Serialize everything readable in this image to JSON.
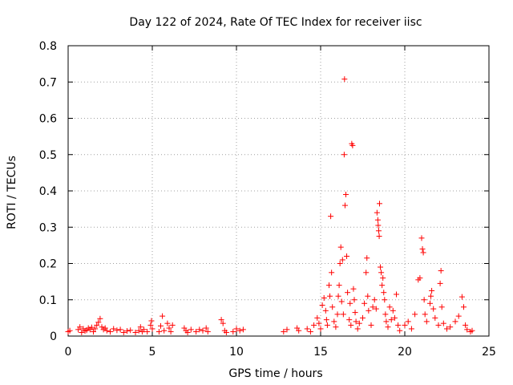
{
  "chart_data": {
    "type": "scatter",
    "title": "Day 122 of 2024, Rate Of TEC Index for receiver iisc",
    "xlabel": "GPS time / hours",
    "ylabel": "ROTI / TECUs",
    "xlim": [
      0,
      25
    ],
    "ylim": [
      0,
      0.8
    ],
    "grid": true,
    "x_ticks": [
      0,
      5,
      10,
      15,
      20,
      25
    ],
    "y_ticks": [
      0,
      0.1,
      0.2,
      0.3,
      0.4,
      0.5,
      0.6,
      0.7,
      0.8
    ],
    "x_tick_labels": [
      "0",
      "5",
      "10",
      "15",
      "20",
      "25"
    ],
    "y_tick_labels": [
      "0",
      "0.1",
      "0.2",
      "0.3",
      "0.4",
      "0.5",
      "0.6",
      "0.7",
      "0.8"
    ],
    "marker": "+",
    "marker_color": "#ff0000",
    "series": [
      {
        "name": "ROTI",
        "points": [
          [
            0.0,
            0.012
          ],
          [
            0.1,
            0.015
          ],
          [
            0.6,
            0.018
          ],
          [
            0.7,
            0.025
          ],
          [
            0.8,
            0.01
          ],
          [
            0.9,
            0.02
          ],
          [
            1.0,
            0.014
          ],
          [
            1.1,
            0.016
          ],
          [
            1.2,
            0.022
          ],
          [
            1.3,
            0.018
          ],
          [
            1.4,
            0.024
          ],
          [
            1.5,
            0.012
          ],
          [
            1.6,
            0.02
          ],
          [
            1.7,
            0.03
          ],
          [
            1.8,
            0.038
          ],
          [
            1.9,
            0.048
          ],
          [
            2.0,
            0.025
          ],
          [
            2.1,
            0.018
          ],
          [
            2.2,
            0.022
          ],
          [
            2.3,
            0.015
          ],
          [
            2.5,
            0.012
          ],
          [
            2.7,
            0.02
          ],
          [
            2.9,
            0.016
          ],
          [
            3.1,
            0.018
          ],
          [
            3.3,
            0.01
          ],
          [
            3.5,
            0.014
          ],
          [
            3.7,
            0.016
          ],
          [
            4.0,
            0.01
          ],
          [
            4.2,
            0.015
          ],
          [
            4.3,
            0.025
          ],
          [
            4.4,
            0.012
          ],
          [
            4.5,
            0.018
          ],
          [
            4.7,
            0.012
          ],
          [
            4.9,
            0.03
          ],
          [
            4.95,
            0.042
          ],
          [
            5.0,
            0.02
          ],
          [
            5.4,
            0.012
          ],
          [
            5.5,
            0.028
          ],
          [
            5.6,
            0.055
          ],
          [
            5.7,
            0.015
          ],
          [
            5.9,
            0.035
          ],
          [
            6.0,
            0.022
          ],
          [
            6.1,
            0.012
          ],
          [
            6.2,
            0.03
          ],
          [
            6.9,
            0.022
          ],
          [
            7.0,
            0.015
          ],
          [
            7.1,
            0.01
          ],
          [
            7.3,
            0.018
          ],
          [
            7.6,
            0.012
          ],
          [
            7.8,
            0.018
          ],
          [
            8.0,
            0.015
          ],
          [
            8.2,
            0.022
          ],
          [
            8.3,
            0.012
          ],
          [
            9.1,
            0.045
          ],
          [
            9.2,
            0.035
          ],
          [
            9.3,
            0.015
          ],
          [
            9.4,
            0.01
          ],
          [
            9.8,
            0.012
          ],
          [
            10.0,
            0.02
          ],
          [
            10.2,
            0.015
          ],
          [
            10.4,
            0.018
          ],
          [
            12.8,
            0.012
          ],
          [
            13.0,
            0.018
          ],
          [
            13.6,
            0.022
          ],
          [
            13.7,
            0.015
          ],
          [
            14.2,
            0.02
          ],
          [
            14.4,
            0.012
          ],
          [
            14.6,
            0.03
          ],
          [
            14.8,
            0.05
          ],
          [
            14.9,
            0.035
          ],
          [
            15.0,
            0.02
          ],
          [
            15.1,
            0.085
          ],
          [
            15.2,
            0.105
          ],
          [
            15.3,
            0.07
          ],
          [
            15.35,
            0.045
          ],
          [
            15.4,
            0.03
          ],
          [
            15.5,
            0.14
          ],
          [
            15.55,
            0.11
          ],
          [
            15.6,
            0.33
          ],
          [
            15.65,
            0.175
          ],
          [
            15.7,
            0.08
          ],
          [
            15.8,
            0.04
          ],
          [
            15.9,
            0.025
          ],
          [
            16.0,
            0.06
          ],
          [
            16.05,
            0.11
          ],
          [
            16.1,
            0.14
          ],
          [
            16.15,
            0.2
          ],
          [
            16.2,
            0.245
          ],
          [
            16.25,
            0.095
          ],
          [
            16.3,
            0.21
          ],
          [
            16.35,
            0.06
          ],
          [
            16.4,
            0.5
          ],
          [
            16.42,
            0.708
          ],
          [
            16.45,
            0.36
          ],
          [
            16.5,
            0.39
          ],
          [
            16.55,
            0.22
          ],
          [
            16.6,
            0.12
          ],
          [
            16.7,
            0.045
          ],
          [
            16.75,
            0.09
          ],
          [
            16.8,
            0.03
          ],
          [
            16.85,
            0.53
          ],
          [
            16.9,
            0.525
          ],
          [
            16.95,
            0.13
          ],
          [
            17.0,
            0.1
          ],
          [
            17.05,
            0.065
          ],
          [
            17.1,
            0.04
          ],
          [
            17.2,
            0.02
          ],
          [
            17.3,
            0.035
          ],
          [
            17.5,
            0.05
          ],
          [
            17.6,
            0.09
          ],
          [
            17.7,
            0.175
          ],
          [
            17.75,
            0.215
          ],
          [
            17.8,
            0.11
          ],
          [
            17.85,
            0.07
          ],
          [
            18.0,
            0.03
          ],
          [
            18.1,
            0.08
          ],
          [
            18.2,
            0.1
          ],
          [
            18.3,
            0.075
          ],
          [
            18.35,
            0.34
          ],
          [
            18.4,
            0.32
          ],
          [
            18.42,
            0.305
          ],
          [
            18.45,
            0.29
          ],
          [
            18.48,
            0.275
          ],
          [
            18.5,
            0.365
          ],
          [
            18.55,
            0.19
          ],
          [
            18.6,
            0.175
          ],
          [
            18.65,
            0.14
          ],
          [
            18.7,
            0.16
          ],
          [
            18.75,
            0.12
          ],
          [
            18.8,
            0.1
          ],
          [
            18.85,
            0.06
          ],
          [
            18.9,
            0.04
          ],
          [
            19.0,
            0.025
          ],
          [
            19.1,
            0.08
          ],
          [
            19.2,
            0.045
          ],
          [
            19.3,
            0.07
          ],
          [
            19.4,
            0.05
          ],
          [
            19.5,
            0.115
          ],
          [
            19.6,
            0.03
          ],
          [
            19.7,
            0.015
          ],
          [
            20.0,
            0.03
          ],
          [
            20.2,
            0.04
          ],
          [
            20.4,
            0.02
          ],
          [
            20.6,
            0.06
          ],
          [
            20.8,
            0.155
          ],
          [
            20.9,
            0.16
          ],
          [
            21.0,
            0.27
          ],
          [
            21.05,
            0.24
          ],
          [
            21.1,
            0.23
          ],
          [
            21.15,
            0.1
          ],
          [
            21.2,
            0.06
          ],
          [
            21.3,
            0.04
          ],
          [
            21.5,
            0.09
          ],
          [
            21.55,
            0.11
          ],
          [
            21.6,
            0.125
          ],
          [
            21.7,
            0.075
          ],
          [
            21.8,
            0.05
          ],
          [
            22.0,
            0.03
          ],
          [
            22.1,
            0.145
          ],
          [
            22.15,
            0.18
          ],
          [
            22.2,
            0.08
          ],
          [
            22.3,
            0.035
          ],
          [
            22.5,
            0.02
          ],
          [
            22.7,
            0.025
          ],
          [
            23.0,
            0.04
          ],
          [
            23.2,
            0.055
          ],
          [
            23.4,
            0.108
          ],
          [
            23.5,
            0.08
          ],
          [
            23.6,
            0.03
          ],
          [
            23.7,
            0.018
          ],
          [
            23.9,
            0.012
          ],
          [
            24.0,
            0.015
          ]
        ]
      }
    ]
  }
}
